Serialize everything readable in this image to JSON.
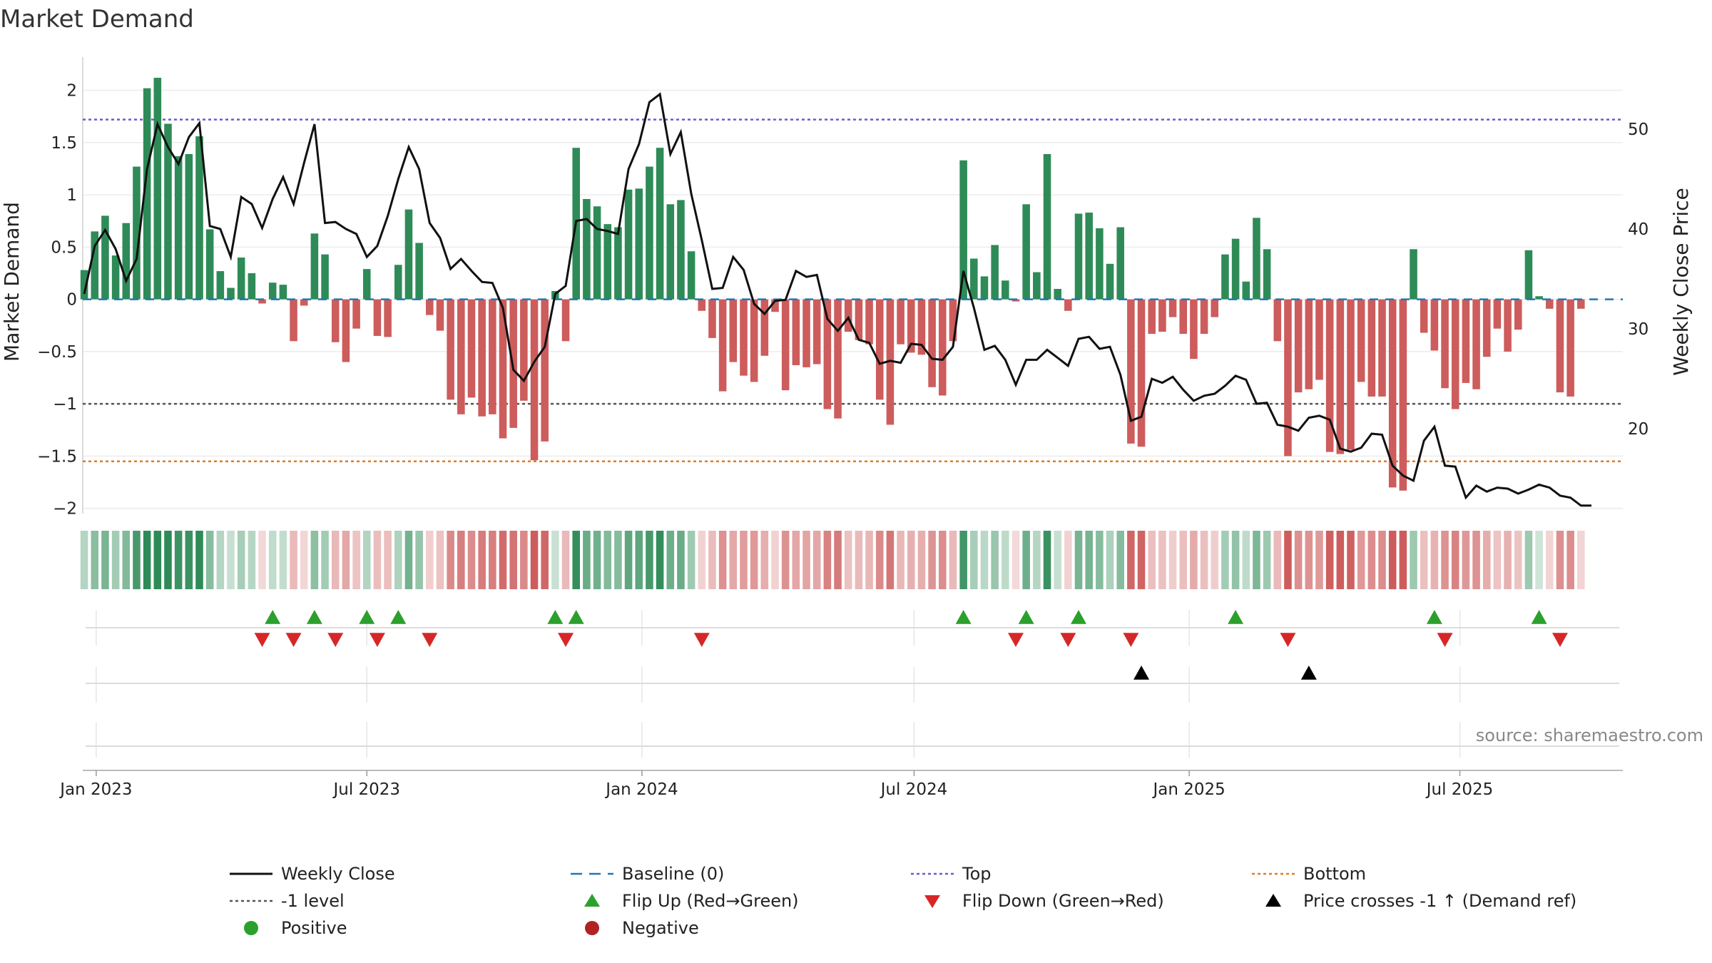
{
  "title": "Market Demand",
  "source": "source: sharemaestro.com",
  "chart_data": {
    "type": "bar",
    "title": "Market Demand",
    "ylabel": "Market Demand",
    "y2label": "Weekly Close Price",
    "ylim": [
      -2.05,
      2.25
    ],
    "y2lim": [
      11.5,
      56.5
    ],
    "yticks": [
      2,
      1.5,
      1,
      0.5,
      0,
      -0.5,
      -1,
      -1.5,
      -2
    ],
    "yticklabels": [
      "2",
      "1.5",
      "1",
      "0.5",
      "0",
      "−0.5",
      "−1",
      "−1.5",
      "−2"
    ],
    "y2ticks": [
      50,
      40,
      30,
      20
    ],
    "y2ticklabels": [
      "50",
      "40",
      "30",
      "20"
    ],
    "xlim": [
      "2022-12-23",
      "2025-10-18"
    ],
    "xticks": [
      {
        "date": "2023-01-01",
        "label": "Jan 2023"
      },
      {
        "date": "2023-07-01",
        "label": "Jul 2023"
      },
      {
        "date": "2024-01-01",
        "label": "Jan 2024"
      },
      {
        "date": "2024-07-01",
        "label": "Jul 2024"
      },
      {
        "date": "2025-01-01",
        "label": "Jan 2025"
      },
      {
        "date": "2025-07-01",
        "label": "Jul 2025"
      }
    ],
    "start_date": "2022-12-24",
    "week_days": 7,
    "demand": [
      0.28,
      0.65,
      0.8,
      0.42,
      0.73,
      1.27,
      2.02,
      2.12,
      1.68,
      1.37,
      1.39,
      1.56,
      0.67,
      0.27,
      0.11,
      0.4,
      0.25,
      -0.04,
      0.16,
      0.14,
      -0.4,
      -0.06,
      0.63,
      0.43,
      -0.41,
      -0.6,
      -0.28,
      0.29,
      -0.35,
      -0.36,
      0.33,
      0.86,
      0.54,
      -0.15,
      -0.3,
      -0.96,
      -1.1,
      -0.94,
      -1.12,
      -1.1,
      -1.33,
      -1.23,
      -0.97,
      -1.54,
      -1.36,
      0.08,
      -0.4,
      1.45,
      0.96,
      0.89,
      0.72,
      0.69,
      1.05,
      1.06,
      1.27,
      1.45,
      0.91,
      0.95,
      0.46,
      -0.11,
      -0.37,
      -0.88,
      -0.6,
      -0.73,
      -0.79,
      -0.54,
      -0.12,
      -0.87,
      -0.63,
      -0.65,
      -0.62,
      -1.05,
      -1.14,
      -0.31,
      -0.39,
      -0.43,
      -0.96,
      -1.2,
      -0.43,
      -0.51,
      -0.53,
      -0.84,
      -0.92,
      -0.4,
      1.33,
      0.39,
      0.22,
      0.52,
      0.18,
      -0.02,
      0.91,
      0.26,
      1.39,
      0.1,
      -0.11,
      0.82,
      0.83,
      0.68,
      0.34,
      0.69,
      -1.38,
      -1.41,
      -0.33,
      -0.31,
      -0.17,
      -0.33,
      -0.57,
      -0.33,
      -0.17,
      0.43,
      0.58,
      0.17,
      0.78,
      0.48,
      -0.4,
      -1.5,
      -0.89,
      -0.86,
      -0.77,
      -1.46,
      -1.48,
      -1.44,
      -0.79,
      -0.93,
      -0.93,
      -1.8,
      -1.83,
      0.48,
      -0.32,
      -0.49,
      -0.85,
      -1.05,
      -0.8,
      -0.86,
      -0.55,
      -0.28,
      -0.5,
      -0.29,
      0.47,
      0.03,
      -0.09,
      -0.89,
      -0.93,
      -0.09
    ],
    "price": [
      33.5,
      38.3,
      39.9,
      38.0,
      34.8,
      37.0,
      46.0,
      50.5,
      48.2,
      46.5,
      49.2,
      50.6,
      40.3,
      40.0,
      37.2,
      43.2,
      42.5,
      40.1,
      43.0,
      45.2,
      42.5,
      46.6,
      50.5,
      40.6,
      40.7,
      40.0,
      39.5,
      37.2,
      38.3,
      41.3,
      45.0,
      48.2,
      46.0,
      40.6,
      39.1,
      36.0,
      37.0,
      35.8,
      34.7,
      34.6,
      32.1,
      25.9,
      24.8,
      26.7,
      28.2,
      33.5,
      34.3,
      40.8,
      41.0,
      40.0,
      39.8,
      39.5,
      46.0,
      48.5,
      52.7,
      53.5,
      47.5,
      49.7,
      43.5,
      38.9,
      34.0,
      34.1,
      37.2,
      35.9,
      32.5,
      31.5,
      32.8,
      32.9,
      35.8,
      35.2,
      35.4,
      31.0,
      29.8,
      31.1,
      28.9,
      28.6,
      26.5,
      26.8,
      26.6,
      28.5,
      28.4,
      27.0,
      26.9,
      28.2,
      35.8,
      32.1,
      27.9,
      28.3,
      26.9,
      24.4,
      26.9,
      26.9,
      27.9,
      27.1,
      26.3,
      29.0,
      29.2,
      28.0,
      28.2,
      25.4,
      20.8,
      21.2,
      25.0,
      24.6,
      25.2,
      23.9,
      22.8,
      23.3,
      23.5,
      24.3,
      25.3,
      24.9,
      22.5,
      22.6,
      20.4,
      20.2,
      19.8,
      21.1,
      21.3,
      20.9,
      18.0,
      17.7,
      18.1,
      19.5,
      19.4,
      16.3,
      15.3,
      14.8,
      18.8,
      20.2,
      16.3,
      16.2,
      13.1,
      14.3,
      13.7,
      14.1,
      14.0,
      13.5,
      13.9,
      14.4,
      14.1,
      13.3,
      13.1,
      12.3,
      12.3
    ],
    "levels": {
      "top": 1.72,
      "baseline": 0,
      "minus_one": -1,
      "bottom": -1.55
    },
    "flip_up_weeks": [
      18,
      22,
      27,
      30,
      45,
      47,
      84,
      90,
      95,
      110,
      129,
      139
    ],
    "flip_down_weeks": [
      17,
      20,
      24,
      28,
      33,
      46,
      59,
      89,
      94,
      100,
      115,
      130,
      141
    ],
    "price_cross_weeks": [
      101,
      117
    ],
    "colors": {
      "positive_bar": "#2e8b57",
      "negative_bar": "#cd5c5c",
      "price_line": "#111111",
      "baseline": "#1f77b4",
      "top": "#6a5acd",
      "minus_one": "#555555",
      "bottom": "#e07b20",
      "flip_up": "#2ca02c",
      "flip_down": "#d62728",
      "price_cross": "#000000",
      "positive_dot": "#2ca02c",
      "negative_dot": "#b22222"
    },
    "legend": [
      {
        "key": "close",
        "label": "Weekly Close"
      },
      {
        "key": "baseline",
        "label": "Baseline (0)"
      },
      {
        "key": "top",
        "label": "Top"
      },
      {
        "key": "bottom",
        "label": "Bottom"
      },
      {
        "key": "minus_one",
        "label": "-1 level"
      },
      {
        "key": "flip_up",
        "label": "Flip Up (Red→Green)"
      },
      {
        "key": "flip_down",
        "label": "Flip Down (Green→Red)"
      },
      {
        "key": "price_cross",
        "label": "Price crosses -1 ↑ (Demand ref)"
      },
      {
        "key": "positive",
        "label": "Positive"
      },
      {
        "key": "negative",
        "label": "Negative"
      }
    ]
  }
}
